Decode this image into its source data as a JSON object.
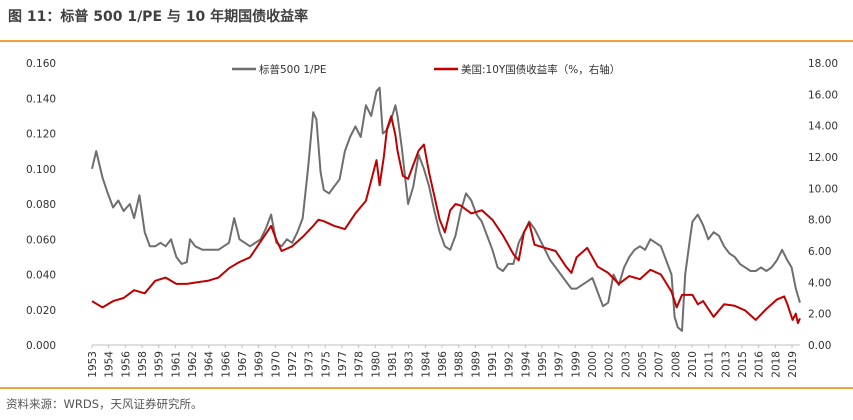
{
  "title": "图 11：标普 500 1/PE 与 10 年期国债收益率",
  "source": "资料来源：WRDS，天风证券研究所。",
  "chart_data": {
    "type": "line",
    "legend_position": "top",
    "left_axis": {
      "ticks": [
        "0.000",
        "0.020",
        "0.040",
        "0.060",
        "0.080",
        "0.100",
        "0.120",
        "0.140",
        "0.160"
      ],
      "ylim": [
        0,
        0.16
      ]
    },
    "right_axis": {
      "ticks": [
        "0.00",
        "2.00",
        "4.00",
        "6.00",
        "8.00",
        "10.00",
        "12.00",
        "14.00",
        "16.00",
        "18.00"
      ],
      "ylim": [
        0,
        18
      ]
    },
    "xlim": [
      1953,
      2020.2
    ],
    "x_tick_labels": [
      "1953",
      "1954",
      "1956",
      "1958",
      "1959",
      "1961",
      "1962",
      "1964",
      "1966",
      "1967",
      "1969",
      "1970",
      "1972",
      "1973",
      "1975",
      "1977",
      "1978",
      "1980",
      "1981",
      "1983",
      "1984",
      "1986",
      "1988",
      "1989",
      "1991",
      "1992",
      "1994",
      "1995",
      "1997",
      "1999",
      "2000",
      "2002",
      "2003",
      "2005",
      "2007",
      "2008",
      "2010",
      "2011",
      "2013",
      "2015",
      "2016",
      "2018",
      "2019"
    ],
    "series": [
      {
        "name": "标普500 1/PE",
        "axis": "left",
        "color": "#6e6e6e",
        "points": [
          [
            1953,
            0.1
          ],
          [
            1953.4,
            0.11
          ],
          [
            1954,
            0.095
          ],
          [
            1954.5,
            0.086
          ],
          [
            1955,
            0.078
          ],
          [
            1955.5,
            0.082
          ],
          [
            1956,
            0.076
          ],
          [
            1956.6,
            0.08
          ],
          [
            1957,
            0.072
          ],
          [
            1957.5,
            0.085
          ],
          [
            1958,
            0.064
          ],
          [
            1958.5,
            0.056
          ],
          [
            1959,
            0.056
          ],
          [
            1959.5,
            0.058
          ],
          [
            1960,
            0.056
          ],
          [
            1960.5,
            0.06
          ],
          [
            1961,
            0.05
          ],
          [
            1961.5,
            0.046
          ],
          [
            1962,
            0.047
          ],
          [
            1962.3,
            0.06
          ],
          [
            1962.8,
            0.056
          ],
          [
            1963.5,
            0.054
          ],
          [
            1964,
            0.054
          ],
          [
            1965,
            0.054
          ],
          [
            1966,
            0.058
          ],
          [
            1966.5,
            0.072
          ],
          [
            1967,
            0.06
          ],
          [
            1967.5,
            0.058
          ],
          [
            1968,
            0.056
          ],
          [
            1969,
            0.06
          ],
          [
            1969.5,
            0.066
          ],
          [
            1970,
            0.074
          ],
          [
            1970.5,
            0.058
          ],
          [
            1971,
            0.056
          ],
          [
            1971.5,
            0.06
          ],
          [
            1972,
            0.058
          ],
          [
            1972.5,
            0.064
          ],
          [
            1973,
            0.072
          ],
          [
            1973.5,
            0.1
          ],
          [
            1974,
            0.132
          ],
          [
            1974.3,
            0.128
          ],
          [
            1974.7,
            0.098
          ],
          [
            1975,
            0.088
          ],
          [
            1975.5,
            0.086
          ],
          [
            1976,
            0.09
          ],
          [
            1976.5,
            0.094
          ],
          [
            1977,
            0.11
          ],
          [
            1977.5,
            0.118
          ],
          [
            1978,
            0.124
          ],
          [
            1978.5,
            0.118
          ],
          [
            1979,
            0.136
          ],
          [
            1979.5,
            0.13
          ],
          [
            1980,
            0.144
          ],
          [
            1980.3,
            0.146
          ],
          [
            1980.6,
            0.12
          ],
          [
            1981,
            0.122
          ],
          [
            1981.4,
            0.128
          ],
          [
            1981.8,
            0.136
          ],
          [
            1982,
            0.13
          ],
          [
            1982.4,
            0.112
          ],
          [
            1983,
            0.08
          ],
          [
            1983.5,
            0.09
          ],
          [
            1984,
            0.108
          ],
          [
            1984.5,
            0.1
          ],
          [
            1985,
            0.09
          ],
          [
            1985.5,
            0.076
          ],
          [
            1986,
            0.064
          ],
          [
            1986.5,
            0.056
          ],
          [
            1987,
            0.054
          ],
          [
            1987.5,
            0.062
          ],
          [
            1988,
            0.076
          ],
          [
            1988.5,
            0.086
          ],
          [
            1989,
            0.082
          ],
          [
            1989.5,
            0.074
          ],
          [
            1990,
            0.07
          ],
          [
            1990.5,
            0.062
          ],
          [
            1991,
            0.054
          ],
          [
            1991.5,
            0.044
          ],
          [
            1992,
            0.042
          ],
          [
            1992.5,
            0.046
          ],
          [
            1993,
            0.046
          ],
          [
            1993.5,
            0.058
          ],
          [
            1994,
            0.064
          ],
          [
            1994.5,
            0.07
          ],
          [
            1995,
            0.066
          ],
          [
            1995.5,
            0.06
          ],
          [
            1996,
            0.054
          ],
          [
            1996.5,
            0.048
          ],
          [
            1997,
            0.044
          ],
          [
            1997.5,
            0.04
          ],
          [
            1998,
            0.036
          ],
          [
            1998.5,
            0.032
          ],
          [
            1999,
            0.032
          ],
          [
            1999.5,
            0.034
          ],
          [
            2000,
            0.036
          ],
          [
            2000.5,
            0.038
          ],
          [
            2001,
            0.03
          ],
          [
            2001.5,
            0.022
          ],
          [
            2002,
            0.024
          ],
          [
            2002.5,
            0.04
          ],
          [
            2003,
            0.034
          ],
          [
            2003.5,
            0.044
          ],
          [
            2004,
            0.05
          ],
          [
            2004.5,
            0.054
          ],
          [
            2005,
            0.056
          ],
          [
            2005.5,
            0.054
          ],
          [
            2006,
            0.06
          ],
          [
            2006.5,
            0.058
          ],
          [
            2007,
            0.056
          ],
          [
            2007.5,
            0.048
          ],
          [
            2008,
            0.04
          ],
          [
            2008.3,
            0.016
          ],
          [
            2008.6,
            0.01
          ],
          [
            2009,
            0.008
          ],
          [
            2009.3,
            0.04
          ],
          [
            2009.8,
            0.062
          ],
          [
            2010,
            0.07
          ],
          [
            2010.5,
            0.074
          ],
          [
            2011,
            0.068
          ],
          [
            2011.5,
            0.06
          ],
          [
            2012,
            0.064
          ],
          [
            2012.5,
            0.062
          ],
          [
            2013,
            0.056
          ],
          [
            2013.5,
            0.052
          ],
          [
            2014,
            0.05
          ],
          [
            2014.5,
            0.046
          ],
          [
            2015,
            0.044
          ],
          [
            2015.5,
            0.042
          ],
          [
            2016,
            0.042
          ],
          [
            2016.5,
            0.044
          ],
          [
            2017,
            0.042
          ],
          [
            2017.5,
            0.044
          ],
          [
            2018,
            0.048
          ],
          [
            2018.5,
            0.054
          ],
          [
            2019,
            0.048
          ],
          [
            2019.4,
            0.044
          ],
          [
            2019.8,
            0.032
          ],
          [
            2020.2,
            0.024
          ]
        ]
      },
      {
        "name": "美国:10Y国债收益率（%，右轴）",
        "axis": "right",
        "color": "#c00000",
        "points": [
          [
            1953,
            2.8
          ],
          [
            1953.5,
            2.6
          ],
          [
            1954,
            2.4
          ],
          [
            1955,
            2.8
          ],
          [
            1956,
            3.0
          ],
          [
            1957,
            3.5
          ],
          [
            1958,
            3.3
          ],
          [
            1959,
            4.1
          ],
          [
            1960,
            4.3
          ],
          [
            1961,
            3.9
          ],
          [
            1962,
            3.9
          ],
          [
            1963,
            4.0
          ],
          [
            1964,
            4.1
          ],
          [
            1965,
            4.3
          ],
          [
            1966,
            4.9
          ],
          [
            1967,
            5.3
          ],
          [
            1968,
            5.6
          ],
          [
            1969,
            6.6
          ],
          [
            1970,
            7.6
          ],
          [
            1970.5,
            6.7
          ],
          [
            1971,
            6.0
          ],
          [
            1972,
            6.3
          ],
          [
            1973,
            6.9
          ],
          [
            1974,
            7.6
          ],
          [
            1974.5,
            8.0
          ],
          [
            1975,
            7.9
          ],
          [
            1976,
            7.6
          ],
          [
            1977,
            7.4
          ],
          [
            1978,
            8.4
          ],
          [
            1979,
            9.2
          ],
          [
            1979.5,
            10.5
          ],
          [
            1980,
            11.8
          ],
          [
            1980.3,
            10.2
          ],
          [
            1980.7,
            12.0
          ],
          [
            1981,
            13.8
          ],
          [
            1981.4,
            14.6
          ],
          [
            1981.8,
            13.4
          ],
          [
            1982,
            12.4
          ],
          [
            1982.5,
            10.8
          ],
          [
            1983,
            10.6
          ],
          [
            1984,
            12.4
          ],
          [
            1984.5,
            12.8
          ],
          [
            1985,
            11.0
          ],
          [
            1986,
            8.0
          ],
          [
            1986.5,
            7.2
          ],
          [
            1987,
            8.6
          ],
          [
            1987.5,
            9.0
          ],
          [
            1988,
            8.9
          ],
          [
            1989,
            8.4
          ],
          [
            1990,
            8.6
          ],
          [
            1991,
            8.0
          ],
          [
            1992,
            7.0
          ],
          [
            1993,
            5.8
          ],
          [
            1993.5,
            5.4
          ],
          [
            1994,
            7.2
          ],
          [
            1994.5,
            7.8
          ],
          [
            1995,
            6.4
          ],
          [
            1996,
            6.2
          ],
          [
            1997,
            6.0
          ],
          [
            1998,
            5.0
          ],
          [
            1998.5,
            4.6
          ],
          [
            1999,
            5.6
          ],
          [
            2000,
            6.2
          ],
          [
            2001,
            5.0
          ],
          [
            2002,
            4.6
          ],
          [
            2003,
            3.9
          ],
          [
            2004,
            4.4
          ],
          [
            2005,
            4.2
          ],
          [
            2006,
            4.8
          ],
          [
            2007,
            4.5
          ],
          [
            2008,
            3.4
          ],
          [
            2008.5,
            2.4
          ],
          [
            2009,
            3.2
          ],
          [
            2010,
            3.2
          ],
          [
            2010.5,
            2.6
          ],
          [
            2011,
            2.8
          ],
          [
            2012,
            1.8
          ],
          [
            2013,
            2.6
          ],
          [
            2014,
            2.5
          ],
          [
            2015,
            2.2
          ],
          [
            2016,
            1.6
          ],
          [
            2017,
            2.3
          ],
          [
            2018,
            2.9
          ],
          [
            2018.7,
            3.1
          ],
          [
            2019,
            2.6
          ],
          [
            2019.5,
            1.6
          ],
          [
            2019.8,
            2.0
          ],
          [
            2020,
            1.4
          ],
          [
            2020.2,
            1.7
          ]
        ]
      }
    ]
  }
}
